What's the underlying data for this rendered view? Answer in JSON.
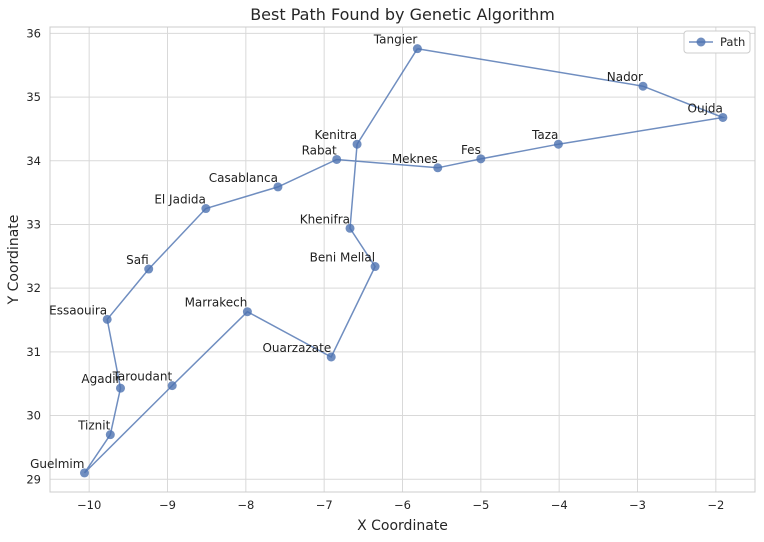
{
  "chart_data": {
    "type": "line",
    "title": "Best Path Found by Genetic Algorithm",
    "xlabel": "X Coordinate",
    "ylabel": "Y Coordinate",
    "xlim": [
      -10.5,
      -1.5
    ],
    "ylim": [
      28.8,
      36.1
    ],
    "xticks": [
      -10,
      -9,
      -8,
      -7,
      -6,
      -5,
      -4,
      -3,
      -2
    ],
    "yticks": [
      29,
      30,
      31,
      32,
      33,
      34,
      35,
      36
    ],
    "grid": true,
    "legend": {
      "position": "top-right",
      "entries": [
        "Path"
      ]
    },
    "line_color": "#4c72b0",
    "series": [
      {
        "name": "Path",
        "points": [
          {
            "city": "Tangier",
            "x": -5.81,
            "y": 35.76
          },
          {
            "city": "Nador",
            "x": -2.93,
            "y": 35.17
          },
          {
            "city": "Oujda",
            "x": -1.91,
            "y": 34.68
          },
          {
            "city": "Taza",
            "x": -4.01,
            "y": 34.26
          },
          {
            "city": "Fes",
            "x": -5.0,
            "y": 34.03
          },
          {
            "city": "Meknes",
            "x": -5.55,
            "y": 33.89
          },
          {
            "city": "Rabat",
            "x": -6.84,
            "y": 34.02
          },
          {
            "city": "Casablanca",
            "x": -7.59,
            "y": 33.59
          },
          {
            "city": "El Jadida",
            "x": -8.51,
            "y": 33.25
          },
          {
            "city": "Safi",
            "x": -9.24,
            "y": 32.3
          },
          {
            "city": "Essaouira",
            "x": -9.77,
            "y": 31.51
          },
          {
            "city": "Agadir",
            "x": -9.6,
            "y": 30.43
          },
          {
            "city": "Tiznit",
            "x": -9.73,
            "y": 29.7
          },
          {
            "city": "Guelmim",
            "x": -10.06,
            "y": 29.1
          },
          {
            "city": "Taroudant",
            "x": -8.94,
            "y": 30.47
          },
          {
            "city": "Marrakech",
            "x": -7.98,
            "y": 31.63
          },
          {
            "city": "Ouarzazate",
            "x": -6.91,
            "y": 30.92
          },
          {
            "city": "Beni Mellal",
            "x": -6.35,
            "y": 32.34
          },
          {
            "city": "Khenifra",
            "x": -6.67,
            "y": 32.94
          },
          {
            "city": "Kenitra",
            "x": -6.58,
            "y": 34.26
          },
          {
            "city": "Tangier",
            "x": -5.81,
            "y": 35.76
          }
        ]
      }
    ]
  }
}
